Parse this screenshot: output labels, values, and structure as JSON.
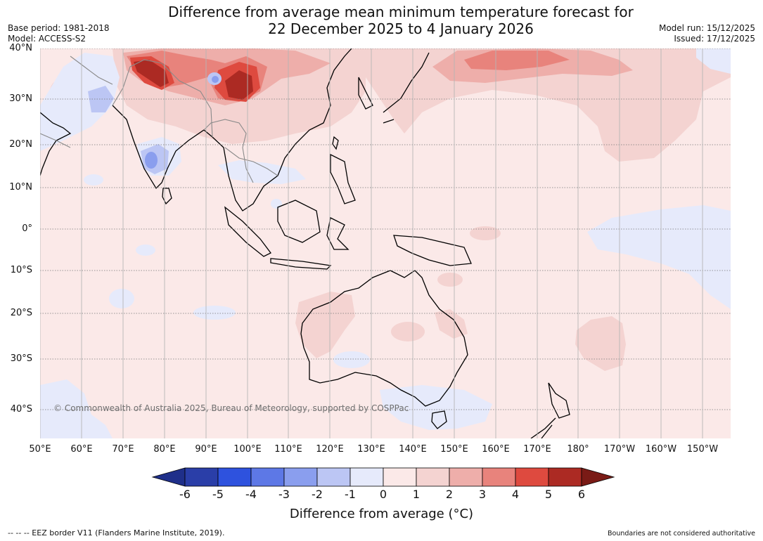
{
  "title": {
    "line1": "Difference from average mean minimum temperature forecast for",
    "line2": "22 December 2025 to 4 January 2026"
  },
  "meta": {
    "base_period": "Base period: 1981-2018",
    "model": "Model: ACCESS-S2",
    "model_run": "Model run: 15/12/2025",
    "issued": "Issued: 17/12/2025"
  },
  "latitudes": [
    "40°N",
    "30°N",
    "20°N",
    "10°N",
    "0°",
    "10°S",
    "20°S",
    "30°S",
    "40°S"
  ],
  "longitudes": [
    "50°E",
    "60°E",
    "70°E",
    "80°E",
    "90°E",
    "100°E",
    "110°E",
    "120°E",
    "130°E",
    "140°E",
    "150°E",
    "160°E",
    "170°E",
    "180°",
    "170°W",
    "160°W",
    "150°W"
  ],
  "copyright": "© Commonwealth of Australia 2025, Bureau of Meteorology, supported by COSPPac",
  "colorbar": {
    "label": "Difference from average (°C)",
    "ticks": [
      "-6",
      "-5",
      "-4",
      "-3",
      "-2",
      "-1",
      "0",
      "1",
      "2",
      "3",
      "4",
      "5",
      "6"
    ],
    "colors": [
      "#2a3ea8",
      "#2e52de",
      "#5d78e6",
      "#8a9eee",
      "#bcc6f4",
      "#e6eafb",
      "#fbe9e8",
      "#f4d3d1",
      "#eeaeaa",
      "#e8837c",
      "#de4a3f",
      "#ac2a23"
    ],
    "under_color": "#1f2f8a",
    "over_color": "#7a1b16"
  },
  "colors": {
    "ocean_base": "#fbe9e8",
    "coast": "#000000",
    "grid": "#777777"
  },
  "footnotes": {
    "eez": "--  --  -- EEZ border V11 (Flanders Marine Institute, 2019).",
    "boundaries": "Boundaries are not considered authoritative"
  }
}
